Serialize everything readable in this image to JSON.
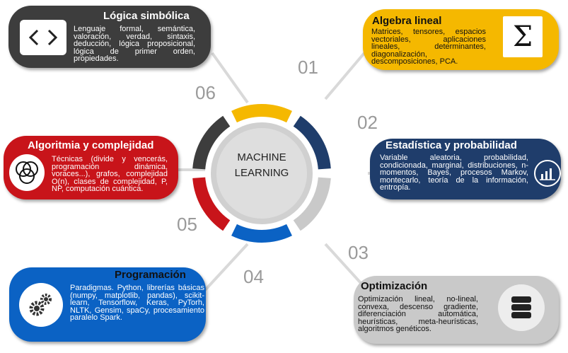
{
  "center": {
    "line1": "MACHINE",
    "line2": "LEARNING"
  },
  "numbers": [
    "01",
    "02",
    "03",
    "04",
    "05",
    "06"
  ],
  "panels": {
    "logica": {
      "title": "Lógica simbólica",
      "body": "Lenguaje formal, semántica, valoración, verdad, sintaxis, deducción, lógica proposicional, lógica de primer orden, propiedades.",
      "icon": "code-brackets-icon",
      "color": "#3d3d3d"
    },
    "algebra": {
      "title": "Algebra lineal",
      "body": "Matrices, tensores, espacios vectoriales, aplicaciones lineales, determinantes, diagonalización, descomposiciones, PCA.",
      "icon": "sigma-icon",
      "color": "#f5b800"
    },
    "estadistica": {
      "title": "Estadística y probabilidad",
      "body": "Variable aleatoria, probabilidad, condicionada, marginal, distribuciones, n-momentos, Bayes, procesos Markov, montecarlo, teoría de la información, entropía.",
      "icon": "bar-chart-icon",
      "color": "#1f3d6b"
    },
    "optimizacion": {
      "title": "Optimización",
      "body": "Optimización lineal, no-lineal, convexa, descenso gradiente, diferenciación automática, heurísticas, meta-heurísticas, algoritmos genéticos.",
      "icon": "database-icon",
      "color": "#c9c9c9"
    },
    "programacion": {
      "title": "Programación",
      "body": "Paradigmas. Python, librerías básicas (numpy, matplotlib, pandas), scikit-learn, Tensorflow, Keras, PyTorh, NLTK, Gensim, spaCy, procesamiento paralelo Spark.",
      "icon": "gears-icon",
      "color": "#0b62c4"
    },
    "algoritmia": {
      "title": "Algoritmia y complejidad",
      "body": "Técnicas (divide y vencerás, programación dinámica, voraces...), grafos, complejidad O(n), clases de complejidad, P, NP, computación cuántica.",
      "icon": "venn-diagram-icon",
      "color": "#c8141a"
    }
  },
  "ring_colors": [
    "#f5b800",
    "#1f3d6b",
    "#c9c9c9",
    "#0b62c4",
    "#c8141a",
    "#3d3d3d"
  ]
}
